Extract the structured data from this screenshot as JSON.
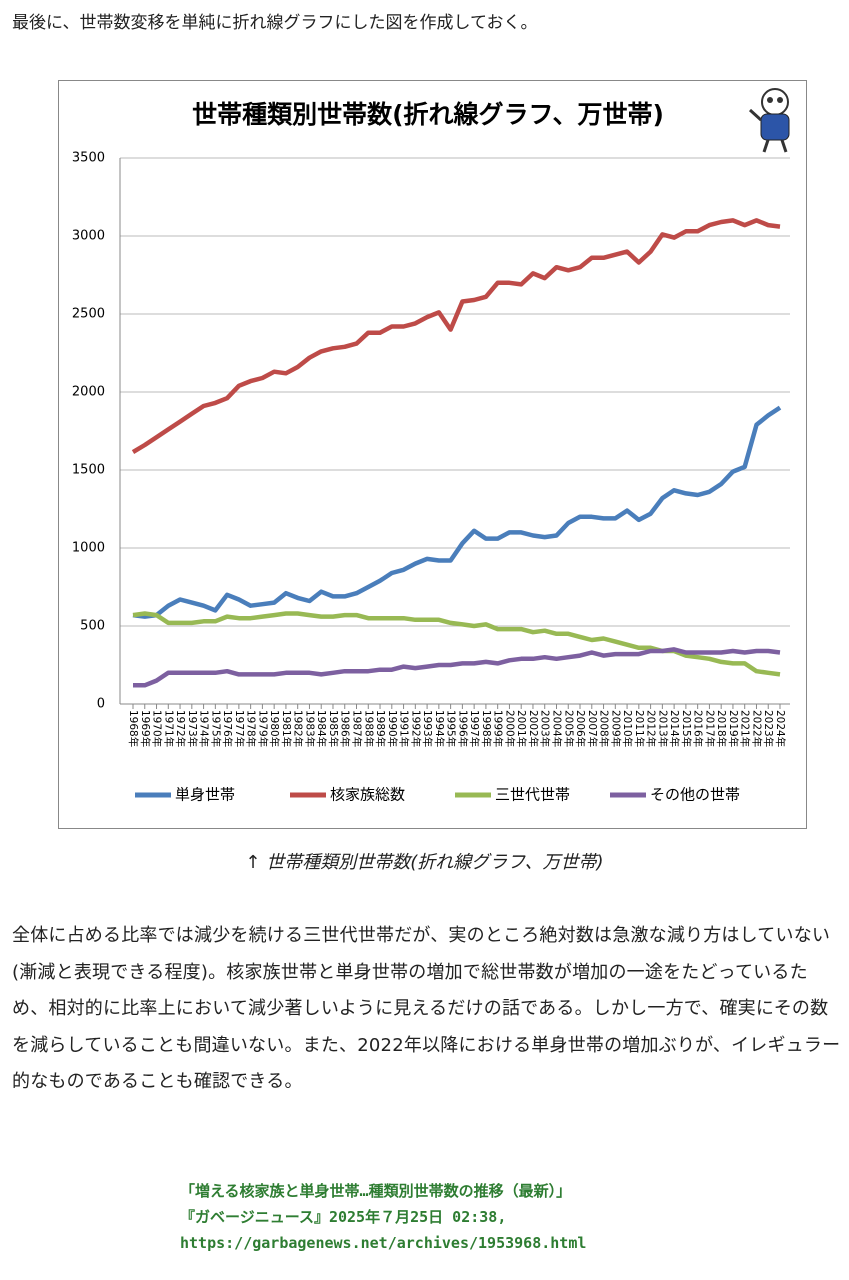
{
  "intro": "最後に、世帯数変移を単純に折れ線グラフにした図を作成しておく。",
  "chart_data": {
    "type": "line",
    "title": "世帯種類別世帯数(折れ線グラフ、万世帯)",
    "categories": [
      "1968年",
      "1969年",
      "1970年",
      "1971年",
      "1972年",
      "1973年",
      "1974年",
      "1975年",
      "1976年",
      "1977年",
      "1978年",
      "1979年",
      "1980年",
      "1981年",
      "1982年",
      "1983年",
      "1984年",
      "1985年",
      "1986年",
      "1987年",
      "1988年",
      "1989年",
      "1990年",
      "1991年",
      "1992年",
      "1993年",
      "1994年",
      "1995年",
      "1996年",
      "1997年",
      "1998年",
      "1999年",
      "2000年",
      "2001年",
      "2002年",
      "2003年",
      "2004年",
      "2005年",
      "2006年",
      "2007年",
      "2008年",
      "2009年",
      "2010年",
      "2011年",
      "2012年",
      "2013年",
      "2014年",
      "2015年",
      "2016年",
      "2017年",
      "2018年",
      "2019年",
      "2021年",
      "2022年",
      "2023年",
      "2024年"
    ],
    "series": [
      {
        "name": "単身世帯",
        "color": "#4a7ebb",
        "values": [
          570,
          560,
          570,
          630,
          670,
          650,
          630,
          600,
          700,
          670,
          630,
          640,
          650,
          710,
          680,
          660,
          720,
          690,
          690,
          710,
          750,
          790,
          840,
          860,
          900,
          930,
          920,
          920,
          1030,
          1110,
          1060,
          1060,
          1100,
          1100,
          1080,
          1070,
          1080,
          1160,
          1200,
          1200,
          1190,
          1190,
          1240,
          1180,
          1220,
          1320,
          1370,
          1350,
          1340,
          1360,
          1410,
          1490,
          1520,
          1790,
          1850,
          1900
        ]
      },
      {
        "name": "核家族総数",
        "color": "#be4b48",
        "values": [
          1615,
          1660,
          1710,
          1760,
          1810,
          1860,
          1910,
          1930,
          1960,
          2040,
          2070,
          2090,
          2130,
          2120,
          2160,
          2220,
          2260,
          2280,
          2290,
          2310,
          2380,
          2380,
          2420,
          2420,
          2440,
          2480,
          2510,
          2400,
          2580,
          2590,
          2610,
          2700,
          2700,
          2690,
          2760,
          2730,
          2800,
          2780,
          2800,
          2860,
          2860,
          2880,
          2900,
          2830,
          2900,
          3010,
          2990,
          3030,
          3030,
          3070,
          3090,
          3100,
          3070,
          3100,
          3070,
          3060
        ]
      },
      {
        "name": "三世代世帯",
        "color": "#98b954",
        "values": [
          570,
          580,
          570,
          520,
          520,
          520,
          530,
          530,
          560,
          550,
          550,
          560,
          570,
          580,
          580,
          570,
          560,
          560,
          570,
          570,
          550,
          550,
          550,
          550,
          540,
          540,
          540,
          520,
          510,
          500,
          510,
          480,
          480,
          480,
          460,
          470,
          450,
          450,
          430,
          410,
          420,
          400,
          380,
          360,
          360,
          340,
          340,
          310,
          300,
          290,
          270,
          260,
          260,
          210,
          200,
          190
        ]
      },
      {
        "name": "その他の世帯",
        "color": "#7d60a0",
        "values": [
          120,
          120,
          150,
          200,
          200,
          200,
          200,
          200,
          210,
          190,
          190,
          190,
          190,
          200,
          200,
          200,
          190,
          200,
          210,
          210,
          210,
          220,
          220,
          240,
          230,
          240,
          250,
          250,
          260,
          260,
          270,
          260,
          280,
          290,
          290,
          300,
          290,
          300,
          310,
          330,
          310,
          320,
          320,
          320,
          340,
          340,
          350,
          330,
          330,
          330,
          330,
          340,
          330,
          340,
          340,
          330
        ]
      }
    ],
    "ylim": [
      0,
      3500
    ],
    "yticks": [
      0,
      500,
      1000,
      1500,
      2000,
      2500,
      3000,
      3500
    ],
    "grid": true,
    "legend": "bottom"
  },
  "caption": "↑ 世帯種類別世帯数(折れ線グラフ、万世帯)",
  "body": "全体に占める比率では減少を続ける三世代世帯だが、実のところ絶対数は急激な減り方はしていない(漸減と表現できる程度)。核家族世帯と単身世帯の増加で総世帯数が増加の一途をたどっているため、相対的に比率上において減少著しいように見えるだけの話である。しかし一方で、確実にその数を減らしていることも間違いない。また、2022年以降における単身世帯の増加ぶりが、イレギュラー的なものであることも確認できる。",
  "source": {
    "title": "「増える核家族と単身世帯…種類別世帯数の推移（最新）」",
    "publication": "『ガベージニュース』2025年７月25日 02:38,",
    "url": "https://garbagenews.net/archives/1953968.html"
  }
}
